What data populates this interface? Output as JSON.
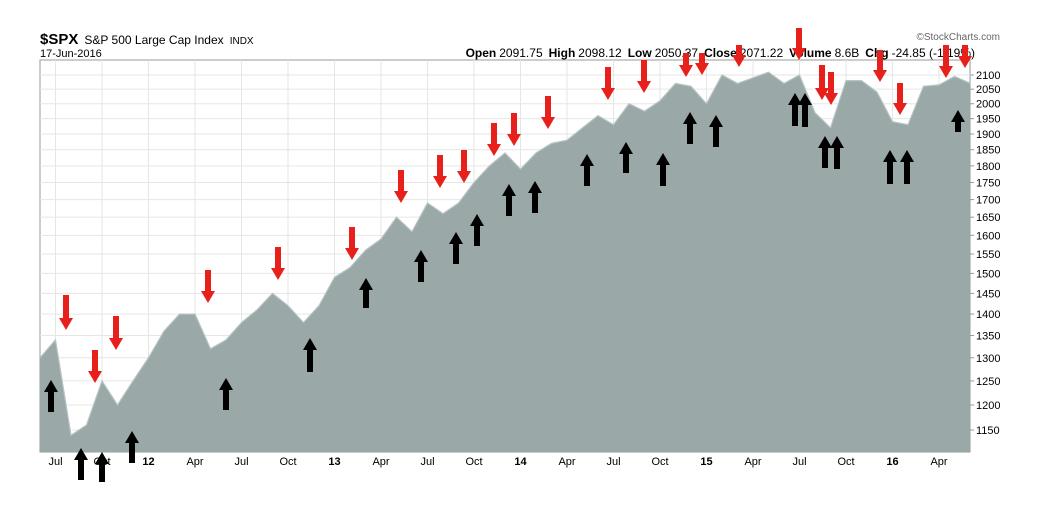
{
  "chart_data": {
    "type": "area",
    "title": "$SPX",
    "subtitle": "S&P 500 Large Cap Index",
    "exchange": "INDX",
    "date": "17-Jun-2016",
    "credit": "©StockCharts.com",
    "quote": [
      {
        "label": "Open",
        "value": 2091.75
      },
      {
        "label": "High",
        "value": 2098.12
      },
      {
        "label": "Low",
        "value": 2050.37
      },
      {
        "label": "Close",
        "value": 2071.22
      },
      {
        "label": "Volume",
        "value": "8.6B"
      },
      {
        "label": "Chg",
        "value": "-24.85 (-1.19%)"
      }
    ],
    "categories": [
      null,
      "Jul",
      null,
      null,
      "Oct",
      null,
      null,
      "12",
      null,
      null,
      "Apr",
      null,
      null,
      "Jul",
      null,
      null,
      "Oct",
      null,
      null,
      "13",
      null,
      null,
      "Apr",
      null,
      null,
      "Jul",
      null,
      null,
      "Oct",
      null,
      null,
      "14",
      null,
      null,
      "Apr",
      null,
      null,
      "Jul",
      null,
      null,
      "Oct",
      null,
      null,
      "15",
      null,
      null,
      "Apr",
      null,
      null,
      "Jul",
      null,
      null,
      "Oct",
      null,
      null,
      "16",
      null,
      null,
      "Apr",
      null,
      null
    ],
    "values": [
      1300,
      1340,
      1140,
      1160,
      1250,
      1200,
      1250,
      1300,
      1360,
      1400,
      1400,
      1320,
      1340,
      1380,
      1410,
      1450,
      1420,
      1380,
      1420,
      1490,
      1515,
      1560,
      1590,
      1650,
      1610,
      1690,
      1660,
      1690,
      1750,
      1800,
      1840,
      1790,
      1840,
      1870,
      1880,
      1920,
      1960,
      1930,
      2000,
      1975,
      2010,
      2070,
      2060,
      2000,
      2100,
      2070,
      2090,
      2110,
      2070,
      2100,
      1970,
      1920,
      2080,
      2080,
      2040,
      1940,
      1930,
      2060,
      2065,
      2095,
      2071
    ],
    "color": "#9aa8a8",
    "log_scale": true,
    "grid": true,
    "ylim": [
      1108,
      2154
    ],
    "yticks": [
      1150,
      1200,
      1250,
      1300,
      1350,
      1400,
      1450,
      1500,
      1550,
      1600,
      1650,
      1700,
      1750,
      1800,
      1850,
      1900,
      1950,
      2000,
      2050,
      2100
    ]
  }
}
